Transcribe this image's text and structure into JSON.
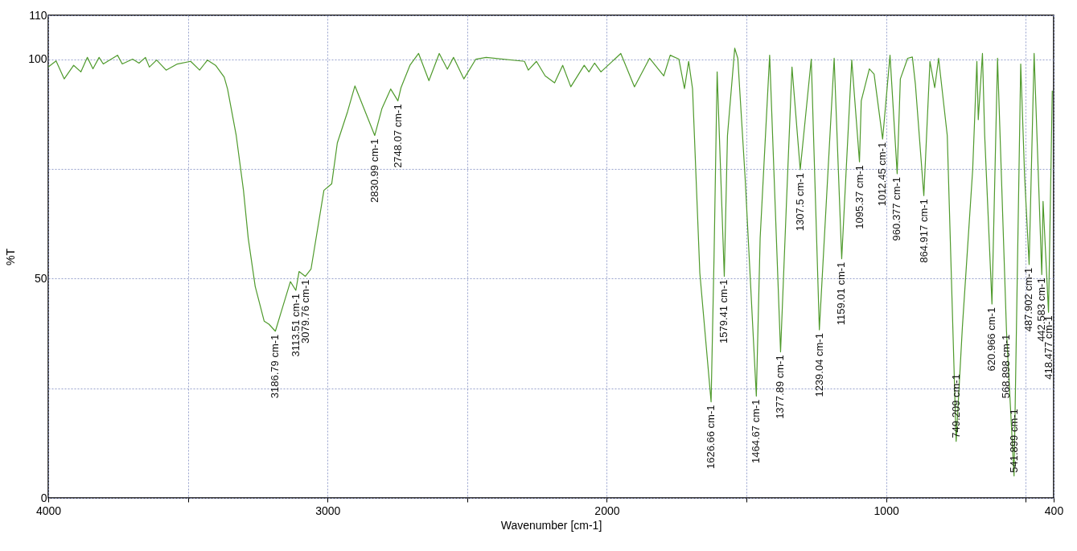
{
  "chart_data": {
    "type": "line",
    "xlabel": "Wavenumber [cm-1]",
    "ylabel": "%T",
    "xlim": [
      4000,
      400
    ],
    "xticks": [
      4000,
      {
        "value": 3500,
        "label": null
      },
      3000,
      {
        "value": 2500,
        "label": null
      },
      2000,
      {
        "value": 1500,
        "label": null
      },
      1000,
      {
        "value": 500,
        "label": null
      },
      400
    ],
    "ylim": [
      0,
      110
    ],
    "yticks": [
      0,
      {
        "value": 25,
        "label": null
      },
      50,
      {
        "value": 75,
        "label": null
      },
      100,
      110
    ],
    "grid": true,
    "line_style": "solid",
    "x": [
      4000,
      3972,
      3943,
      3909,
      3883,
      3860,
      3840,
      3818,
      3803,
      3752,
      3735,
      3698,
      3675,
      3652,
      3638,
      3612,
      3578,
      3538,
      3490,
      3458,
      3430,
      3401,
      3370,
      3358,
      3327,
      3301,
      3284,
      3259,
      3227,
      3210,
      3186.79,
      3165,
      3133,
      3113.51,
      3102,
      3079.76,
      3059,
      3013,
      2985,
      2965,
      2928,
      2902,
      2885,
      2830.99,
      2805,
      2774,
      2748.07,
      2737,
      2705,
      2674,
      2637,
      2600,
      2571,
      2549,
      2512,
      2469,
      2432,
      2295,
      2281,
      2252,
      2221,
      2187,
      2158,
      2129,
      2081,
      2064,
      2044,
      2021,
      1950,
      1901,
      1847,
      1796,
      1773,
      1742,
      1722,
      1707,
      1693,
      1667,
      1626.66,
      1616,
      1605,
      1579.41,
      1568,
      1542,
      1531,
      1505,
      1464.67,
      1451,
      1417,
      1377.89,
      1357,
      1337,
      1307.5,
      1268,
      1239.04,
      1186,
      1159.01,
      1123,
      1095.37,
      1089,
      1060,
      1043,
      1012.45,
      986,
      960.377,
      949,
      923,
      906,
      895,
      864.917,
      843,
      826,
      812,
      781,
      749.209,
      727,
      690,
      675,
      670,
      655,
      647,
      620.966,
      601,
      568.898,
      541.899,
      518,
      504,
      487.902,
      470,
      442.583,
      438,
      418.477,
      405
    ],
    "series": [
      {
        "color": "#4f9a2c",
        "values": [
          98.2,
          99.6,
          95.5,
          98.6,
          97.1,
          100.4,
          97.8,
          100.4,
          98.9,
          100.9,
          98.9,
          100,
          99.1,
          100.4,
          98.2,
          99.8,
          97.5,
          98.9,
          99.5,
          97.5,
          99.8,
          98.6,
          95.9,
          93.2,
          82.6,
          70.1,
          59.2,
          48.2,
          40.3,
          39.6,
          38.0,
          42.6,
          49.3,
          47.3,
          51.6,
          50.5,
          52.2,
          70.1,
          71.6,
          80.9,
          88.1,
          93.9,
          91.2,
          82.6,
          88.8,
          93.2,
          90.5,
          93.5,
          98.6,
          101.3,
          95.1,
          101.3,
          97.7,
          100.4,
          95.5,
          100,
          100.4,
          99.5,
          97.5,
          99.5,
          96.2,
          94.6,
          98.6,
          93.7,
          98.6,
          97.1,
          99.1,
          97.1,
          101.3,
          93.7,
          100.2,
          96.2,
          100.9,
          100,
          93.3,
          99.5,
          93.2,
          51.3,
          21.9,
          55.2,
          97.1,
          50.5,
          82.6,
          102.5,
          100.2,
          73.2,
          23.2,
          59.2,
          100.9,
          33.3,
          66.9,
          98.2,
          74.8,
          100,
          38.3,
          100.2,
          54.5,
          99.8,
          76.6,
          90.5,
          97.8,
          96.6,
          81.8,
          100.9,
          73.9,
          95.5,
          100.2,
          100.5,
          94.2,
          68.9,
          99.5,
          93.5,
          100.2,
          82.6,
          12.9,
          38.8,
          74.8,
          99.5,
          86.2,
          101.3,
          82.6,
          44.2,
          100.2,
          38,
          5.0,
          98.9,
          73.2,
          53.2,
          101.3,
          50.9,
          67.6,
          42.3,
          92.8
        ]
      }
    ],
    "annotations": [
      {
        "text": "3186.79 cm-1",
        "x": 3186.79,
        "y": 38.0
      },
      {
        "text": "3113.51 cm-1",
        "x": 3113.51,
        "y": 47.3
      },
      {
        "text": "3079.76 cm-1",
        "x": 3079.76,
        "y": 50.5
      },
      {
        "text": "2830.99 cm-1",
        "x": 2830.99,
        "y": 82.6
      },
      {
        "text": "2748.07 cm-1",
        "x": 2748.07,
        "y": 90.5
      },
      {
        "text": "1626.66 cm-1",
        "x": 1626.66,
        "y": 21.9
      },
      {
        "text": "1579.41 cm-1",
        "x": 1579.41,
        "y": 50.5
      },
      {
        "text": "1464.67 cm-1",
        "x": 1464.67,
        "y": 23.2
      },
      {
        "text": "1377.89 cm-1",
        "x": 1377.89,
        "y": 33.3
      },
      {
        "text": "1307.5 cm-1",
        "x": 1307.5,
        "y": 74.8
      },
      {
        "text": "1239.04 cm-1",
        "x": 1239.04,
        "y": 38.3
      },
      {
        "text": "1159.01 cm-1",
        "x": 1159.01,
        "y": 54.5
      },
      {
        "text": "1095.37 cm-1",
        "x": 1095.37,
        "y": 76.6
      },
      {
        "text": "1012.45 cm-1",
        "x": 1012.45,
        "y": 81.8
      },
      {
        "text": "960.377 cm-1",
        "x": 960.377,
        "y": 73.9
      },
      {
        "text": "864.917 cm-1",
        "x": 864.917,
        "y": 68.9
      },
      {
        "text": "749.209 cm-1",
        "x": 749.209,
        "y": 12.9
      },
      {
        "text": "620.966 cm-1",
        "x": 620.966,
        "y": 44.2
      },
      {
        "text": "568.898 cm-1",
        "x": 568.898,
        "y": 38
      },
      {
        "text": "541.899 cm-1",
        "x": 541.899,
        "y": 5.0
      },
      {
        "text": "487.902 cm-1",
        "x": 487.902,
        "y": 53.2
      },
      {
        "text": "442.583 cm-1",
        "x": 442.583,
        "y": 50.9
      },
      {
        "text": "418.477 cm-1",
        "x": 418.477,
        "y": 42.3
      }
    ]
  }
}
